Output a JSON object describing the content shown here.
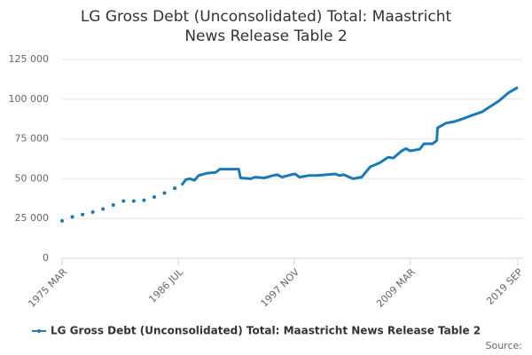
{
  "chart_data": {
    "type": "line",
    "title": "LG Gross Debt (Unconsolidated) Total: Maastricht News Release Table 2",
    "source": "Source:",
    "x": [
      "1975 MAR",
      "1975 SEP",
      "1976 MAR",
      "1976 SEP",
      "1977 MAR",
      "1977 SEP",
      "1978 MAR",
      "1978 SEP",
      "1979 MAR",
      "1979 SEP",
      "1980 MAR",
      "1980 SEP",
      "1981 MAR",
      "1981 SEP",
      "1982 MAR",
      "1982 SEP",
      "1983 MAR",
      "1983 SEP",
      "1984 MAR",
      "1984 SEP",
      "1985 MAR",
      "1985 SEP",
      "1986 MAR",
      "1986 JUL",
      "1986 NOV",
      "1987 APR",
      "1987 SEP",
      "1988 FEB",
      "1988 JUL",
      "1989 MAY",
      "1990 MAR",
      "1990 AUG",
      "1991 JUN",
      "1991 NOV",
      "1992 JUN",
      "1992 AUG",
      "1993 AUG",
      "1994 JAN",
      "1994 DEC",
      "1995 OCT",
      "1996 MAR",
      "1996 SEP",
      "1997 JUL",
      "1997 DEC",
      "1998 MAY",
      "1999 APR",
      "2000 FEB",
      "2001 JAN",
      "2001 NOV",
      "2002 APR",
      "2002 SEP",
      "2003 AUG",
      "2004 JUN",
      "2005 APR",
      "2006 MAR",
      "2007 JAN",
      "2007 JUL",
      "2008 MAY",
      "2008 OCT",
      "2009 MAR",
      "2010 FEB",
      "2010 JUL",
      "2011 MAY",
      "2011 OCT",
      "2011 NOV",
      "2012 SEP",
      "2013 JUL",
      "2014 JUN",
      "2015 APR",
      "2016 MAR",
      "2017 JAN",
      "2017 NOV",
      "2018 OCT",
      "2019 SEP"
    ],
    "series": [
      {
        "name": "LG Gross Debt (Unconsolidated) Total: Maastricht News Release Table 2",
        "color": "#1a7ab5",
        "values": [
          23500,
          null,
          26000,
          null,
          27500,
          null,
          29000,
          null,
          31000,
          null,
          33500,
          null,
          36000,
          null,
          36000,
          null,
          36500,
          null,
          38500,
          null,
          41000,
          null,
          44000,
          null,
          46000,
          49500,
          50000,
          49000,
          52000,
          53500,
          54000,
          56000,
          56000,
          56000,
          56000,
          50500,
          50000,
          51000,
          50500,
          52000,
          52500,
          51000,
          52500,
          53000,
          51000,
          52000,
          52000,
          52500,
          53000,
          52000,
          52500,
          50000,
          51000,
          57500,
          60000,
          63500,
          63000,
          67500,
          69000,
          67500,
          68500,
          72000,
          72000,
          74000,
          82000,
          85000,
          86000,
          88000,
          90000,
          92000,
          95500,
          99000,
          104000,
          107500
        ]
      }
    ],
    "xticks": [
      "1975 MAR",
      "1986 JUL",
      "1997 NOV",
      "2009 MAR",
      "2019 SEP"
    ],
    "ylim": [
      0,
      125000
    ],
    "yticks": [
      0,
      {
        "value": 25000,
        "label": "25 000"
      },
      {
        "value": 50000,
        "label": "50 000"
      },
      {
        "value": 75000,
        "label": "75 000"
      },
      {
        "value": 100000,
        "label": "100 000"
      },
      {
        "value": 125000,
        "label": "125 000"
      }
    ],
    "grid": true,
    "legend": "bottom"
  }
}
